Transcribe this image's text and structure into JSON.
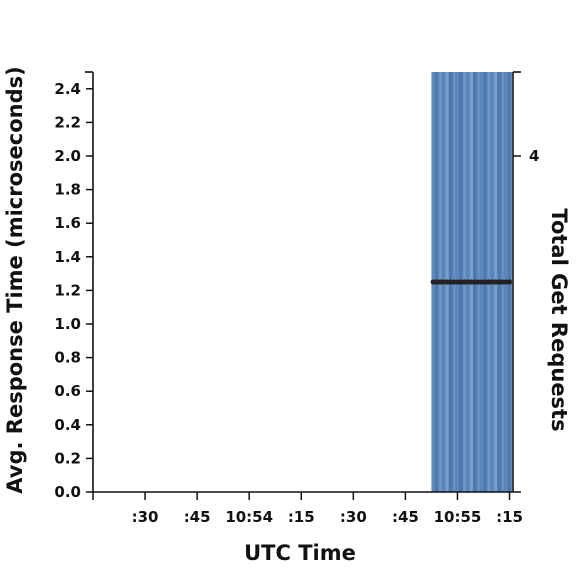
{
  "chart_data": {
    "type": "bar",
    "xlabel": "UTC Time",
    "ylabel": "Avg. Response Time (microseconds)",
    "y2label": "Total Get Requests",
    "x_ticks": [
      {
        "label": ":30",
        "time": "10:53:30"
      },
      {
        "label": ":45",
        "time": "10:53:45"
      },
      {
        "label": "10:54",
        "time": "10:54:00"
      },
      {
        "label": ":15",
        "time": "10:54:15"
      },
      {
        "label": ":30",
        "time": "10:54:30"
      },
      {
        "label": ":45",
        "time": "10:54:45"
      },
      {
        "label": "10:55",
        "time": "10:55:00"
      },
      {
        "label": ":15",
        "time": "10:55:15"
      }
    ],
    "xlim": [
      "10:53:15",
      "10:55:16"
    ],
    "ylim": [
      0,
      2.5
    ],
    "y_ticks": [
      0.0,
      0.2,
      0.4,
      0.6,
      0.8,
      1.0,
      1.2,
      1.4,
      1.6,
      1.8,
      2.0,
      2.2,
      2.4
    ],
    "y_tick_labels": [
      "0.0",
      "0.2",
      "0.4",
      "0.6",
      "0.8",
      "1.0",
      "1.2",
      "1.4",
      "1.6",
      "1.8",
      "2.0",
      "2.2",
      "2.4"
    ],
    "y2_ticks": [
      4
    ],
    "y2_tick_labels": [
      "4"
    ],
    "y2lim": [
      0,
      5
    ],
    "bar_color": "#4a77b0",
    "line_color": "#222222",
    "series": [
      {
        "type": "bar",
        "axis": "y2",
        "x": [
          "10:54:53",
          "10:54:54",
          "10:54:55",
          "10:54:56",
          "10:54:57",
          "10:54:58",
          "10:54:59",
          "10:55:00",
          "10:55:01",
          "10:55:02",
          "10:55:03",
          "10:55:04",
          "10:55:05",
          "10:55:06",
          "10:55:07",
          "10:55:08",
          "10:55:09",
          "10:55:10",
          "10:55:11",
          "10:55:12",
          "10:55:13",
          "10:55:14",
          "10:55:15"
        ],
        "values": [
          6,
          6,
          6,
          6,
          6,
          6,
          6,
          6,
          6,
          6,
          6,
          6,
          6,
          6,
          6,
          6,
          6,
          6,
          6,
          6,
          6,
          6,
          6
        ]
      },
      {
        "type": "line",
        "axis": "y",
        "x": [
          "10:54:53",
          "10:54:54",
          "10:54:55",
          "10:54:56",
          "10:54:57",
          "10:54:58",
          "10:54:59",
          "10:55:00",
          "10:55:01",
          "10:55:02",
          "10:55:03",
          "10:55:04",
          "10:55:05",
          "10:55:06",
          "10:55:07",
          "10:55:08",
          "10:55:09",
          "10:55:10",
          "10:55:11",
          "10:55:12",
          "10:55:13",
          "10:55:14",
          "10:55:15"
        ],
        "values": [
          1.25,
          1.25,
          1.25,
          1.25,
          1.25,
          1.25,
          1.25,
          1.25,
          1.25,
          1.25,
          1.25,
          1.25,
          1.25,
          1.25,
          1.25,
          1.25,
          1.25,
          1.25,
          1.25,
          1.25,
          1.25,
          1.25,
          1.25
        ]
      }
    ]
  }
}
